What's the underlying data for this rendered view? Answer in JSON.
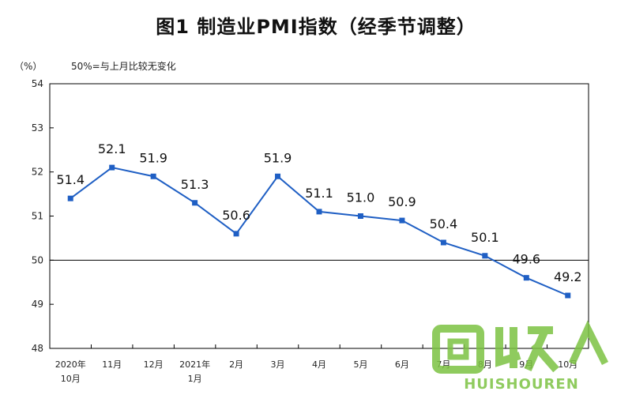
{
  "title": "图1  制造业PMI指数（经季节调整）",
  "unit": "（%）",
  "reference_note": "50%=与上月比较无变化",
  "watermark": {
    "text": "HUISHOUREN",
    "color": "#7cc242"
  },
  "chart_data": {
    "type": "line",
    "categories": [
      [
        "2020年",
        "10月"
      ],
      [
        "11月"
      ],
      [
        "12月"
      ],
      [
        "2021年",
        "1月"
      ],
      [
        "2月"
      ],
      [
        "3月"
      ],
      [
        "4月"
      ],
      [
        "5月"
      ],
      [
        "6月"
      ],
      [
        "7月"
      ],
      [
        "8月"
      ],
      [
        "9月"
      ],
      [
        "10月"
      ]
    ],
    "series": [
      {
        "values": [
          51.4,
          52.1,
          51.9,
          51.3,
          50.6,
          51.9,
          51.1,
          51.0,
          50.9,
          50.4,
          50.1,
          49.6,
          49.2
        ],
        "labels": [
          "51.4",
          "52.1",
          "51.9",
          "51.3",
          "50.6",
          "51.9",
          "51.1",
          "51.0",
          "50.9",
          "50.4",
          "50.1",
          "49.6",
          "49.2"
        ],
        "color": "#1f5fc4"
      }
    ],
    "ylim": [
      48,
      54
    ],
    "yticks": [
      "48",
      "49",
      "50",
      "51",
      "52",
      "53",
      "54"
    ],
    "reference_line": 50,
    "grid": false
  }
}
